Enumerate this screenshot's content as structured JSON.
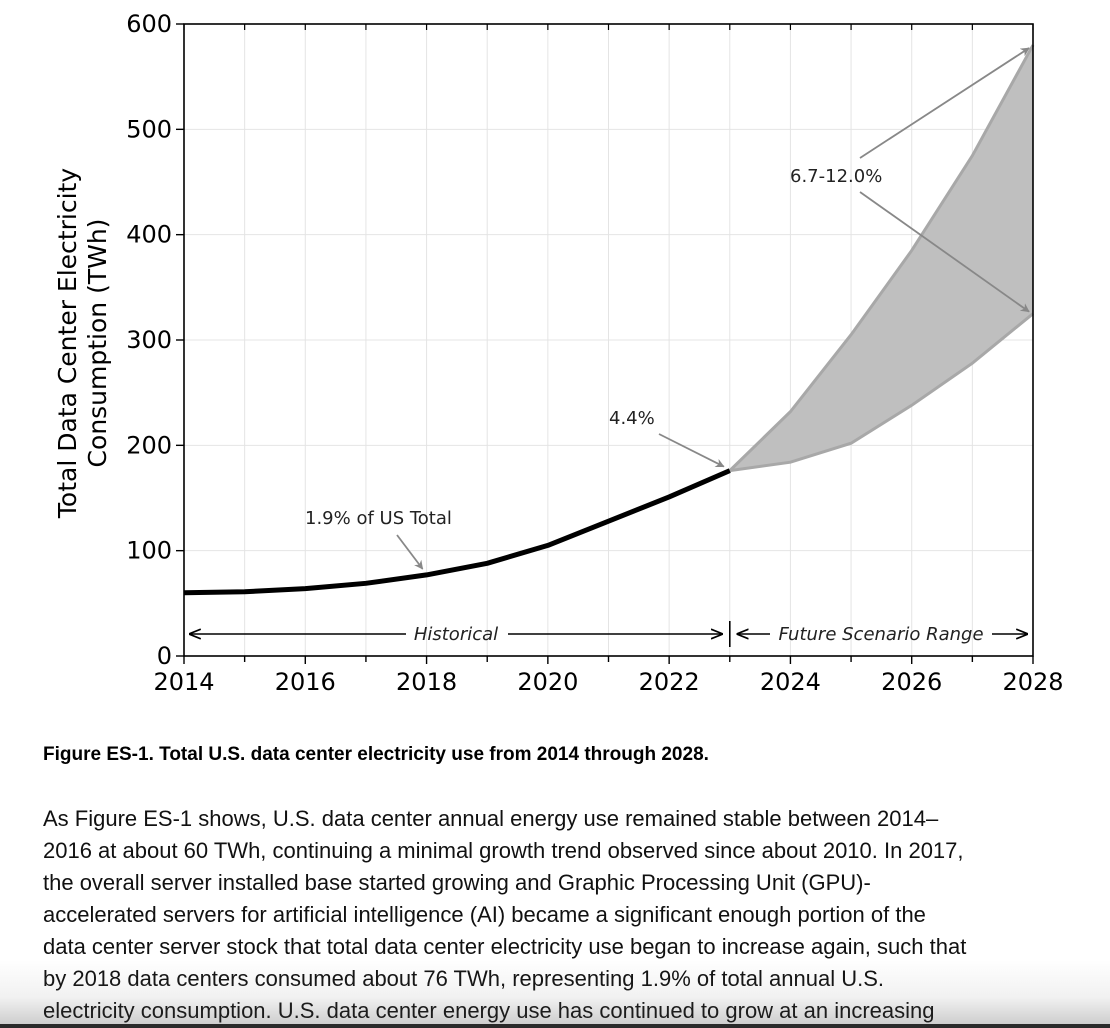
{
  "chart_data": {
    "type": "line",
    "ylabel": [
      "Total Data Center Electricity",
      "Consumption (TWh)"
    ],
    "xlim": [
      2014,
      2028
    ],
    "ylim": [
      0,
      600
    ],
    "x_ticks": [
      2014,
      2016,
      2018,
      2020,
      2022,
      2024,
      2026,
      2028
    ],
    "y_ticks": [
      0,
      100,
      200,
      300,
      400,
      500,
      600
    ],
    "grid": true,
    "series": [
      {
        "role": "historical",
        "color": "#000000",
        "x": [
          2014,
          2015,
          2016,
          2017,
          2018,
          2019,
          2020,
          2021,
          2022,
          2023
        ],
        "y": [
          60,
          61,
          64,
          69,
          77,
          88,
          105,
          128,
          151,
          176
        ]
      }
    ],
    "range": {
      "color_fill": "#bfbfbf",
      "color_edge": "#a8a8a8",
      "x": [
        2023,
        2024,
        2025,
        2026,
        2027,
        2028
      ],
      "upper": [
        176,
        232,
        305,
        385,
        475,
        580
      ],
      "lower": [
        176,
        184,
        202,
        238,
        278,
        325
      ]
    },
    "annotations": [
      {
        "text": "1.9% of US Total",
        "target": [
          2018,
          77
        ]
      },
      {
        "text": "4.4%",
        "target": [
          2023,
          176
        ]
      },
      {
        "text": "6.7-12.0%",
        "targets": [
          [
            2028,
            580
          ],
          [
            2028,
            325
          ]
        ]
      }
    ],
    "period_labels": {
      "historical": "Historical",
      "future": "Future Scenario Range"
    }
  },
  "caption": "Figure ES-1. Total U.S. data center electricity use from 2014 through 2028.",
  "body_lines": [
    "As Figure ES-1 shows, U.S. data center annual energy use remained stable between 2014–",
    "2016 at about 60 TWh, continuing a minimal growth trend observed since about 2010. In 2017,",
    "the overall server installed base started growing and Graphic Processing Unit (GPU)-",
    "accelerated servers for artificial intelligence (AI) became a significant enough portion of the",
    "data center server stock that total data center electricity use began to increase again, such that",
    "by 2018 data centers consumed about 76 TWh, representing 1.9% of total annual U.S.",
    "electricity consumption. U.S. data center energy use has continued to grow at an increasing"
  ]
}
